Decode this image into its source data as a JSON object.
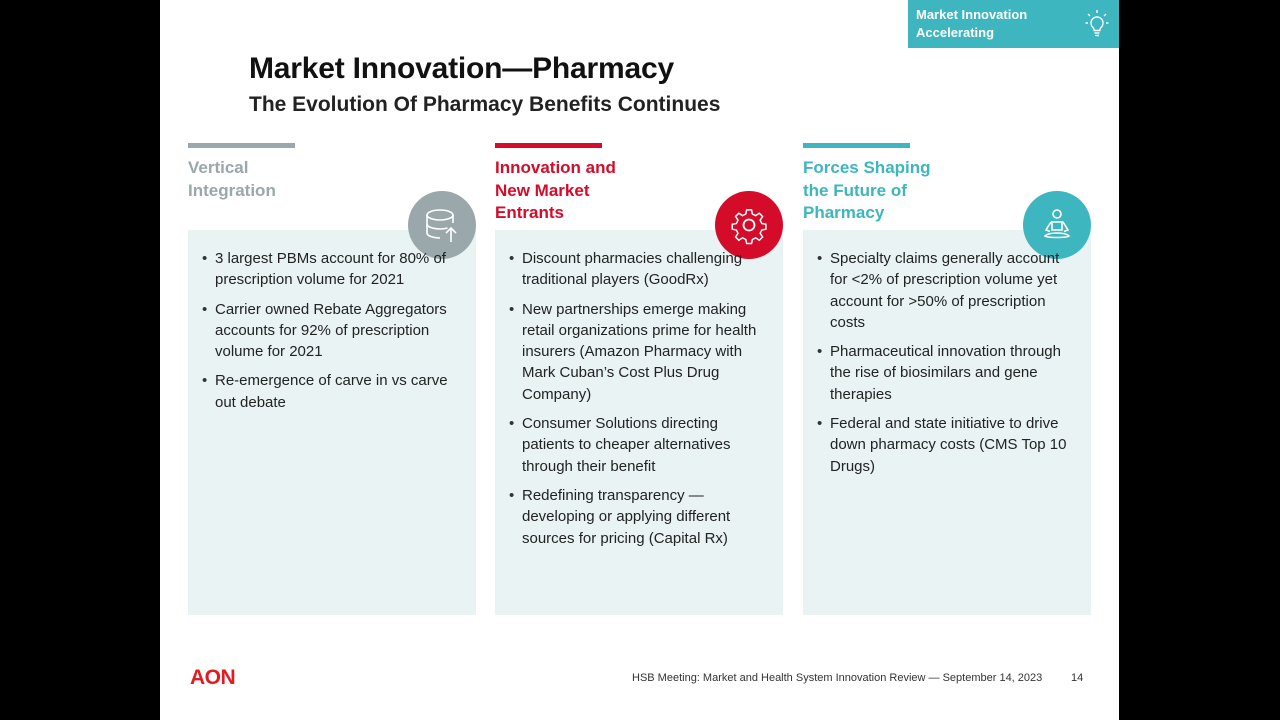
{
  "tag": {
    "line1": "Market Innovation",
    "line2": "Accelerating",
    "icon": "lightbulb-icon"
  },
  "title": "Market Innovation—Pharmacy",
  "subtitle": "The Evolution Of Pharmacy Benefits Continues",
  "columns": [
    {
      "heading": [
        "Vertical",
        "Integration"
      ],
      "accent": "#9aa7ab",
      "icon": "database-icon",
      "bullets": [
        "3 largest PBMs account for 80% of prescription volume for 2021",
        "Carrier owned Rebate Aggregators accounts for 92% of prescription volume for 2021",
        "Re-emergence of carve in vs carve out debate"
      ]
    },
    {
      "heading": [
        "Innovation and",
        "New Market",
        "Entrants"
      ],
      "accent": "#d50b2a",
      "icon": "gear-icon",
      "bullets": [
        "Discount pharmacies challenging traditional players  (GoodRx)",
        "New partnerships emerge making retail organizations prime for health insurers (Amazon Pharmacy with Mark Cuban’s Cost Plus Drug Company)",
        "Consumer Solutions directing patients to cheaper alternatives through their benefit",
        "Redefining transparency — developing or applying different sources for pricing (Capital Rx)"
      ]
    },
    {
      "heading": [
        "Forces Shaping",
        "the Future of",
        "Pharmacy"
      ],
      "accent": "#3db6bf",
      "icon": "meditation-icon",
      "bullets": [
        "Specialty claims generally account for <2% of prescription volume yet account for >50% of prescription costs",
        "Pharmaceutical innovation through the rise of biosimilars and gene therapies",
        "Federal and state initiative to drive down pharmacy costs (CMS Top 10 Drugs)"
      ]
    }
  ],
  "footer": {
    "logo": "AON",
    "text": "HSB Meeting: Market and Health System Innovation Review — September 14, 2023",
    "page": "14"
  }
}
